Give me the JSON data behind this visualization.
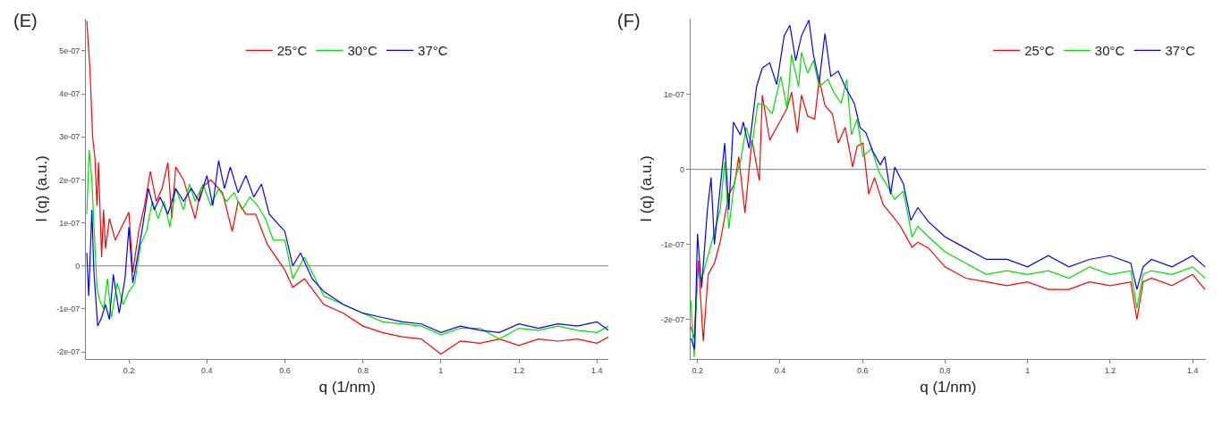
{
  "chart_data": [
    {
      "type": "line",
      "title": "(E)",
      "xlabel": "q (1/nm)",
      "ylabel": "I (q) (a.u.)",
      "xlim": [
        0.09,
        1.43
      ],
      "ylim": [
        -2.17e-07,
        5.75e-07
      ],
      "xticks": [
        0.2,
        0.4,
        0.6,
        0.8,
        1,
        1.2,
        1.4
      ],
      "yticks": [
        {
          "value": -2e-07,
          "label": "-2e-07"
        },
        {
          "value": -1e-07,
          "label": "-1e-07"
        },
        0,
        {
          "value": 1e-07,
          "label": "1e-07"
        },
        {
          "value": 2e-07,
          "label": "2e-07"
        },
        {
          "value": 3e-07,
          "label": "3e-07"
        },
        {
          "value": 4e-07,
          "label": "4e-07"
        },
        {
          "value": 5e-07,
          "label": "5e-07"
        }
      ],
      "grid": false,
      "legend": "top",
      "ref_lines": [
        {
          "axis": "y",
          "value": 0,
          "color": "#808080"
        }
      ],
      "series": [
        {
          "name": "25°C",
          "color": "#ff0000",
          "x": [
            0.092,
            0.1,
            0.107,
            0.113,
            0.118,
            0.122,
            0.13,
            0.135,
            0.14,
            0.15,
            0.165,
            0.2,
            0.21,
            0.225,
            0.24,
            0.255,
            0.27,
            0.285,
            0.3,
            0.31,
            0.32,
            0.34,
            0.37,
            0.385,
            0.41,
            0.44,
            0.465,
            0.48,
            0.5,
            0.525,
            0.555,
            0.585,
            0.6,
            0.62,
            0.65,
            0.7,
            0.75,
            0.8,
            0.85,
            0.9,
            0.95,
            1.0,
            1.05,
            1.1,
            1.15,
            1.2,
            1.25,
            1.3,
            1.35,
            1.4,
            1.43
          ],
          "values": [
            5.7e-07,
            4.6e-07,
            3e-07,
            2.5e-07,
            1.4e-07,
            2.4e-07,
            2e-08,
            1.3e-07,
            4e-08,
            1.1e-07,
            6e-08,
            1.25e-07,
            -1.5e-08,
            8e-08,
            1.4e-07,
            2.2e-07,
            1.5e-07,
            1.8e-07,
            2.4e-07,
            1.1e-07,
            2.3e-07,
            2e-07,
            1.1e-07,
            1.8e-07,
            2e-07,
            1.7e-07,
            8e-08,
            1.5e-07,
            1.2e-07,
            1.2e-07,
            5e-08,
            1e-08,
            -1e-08,
            -5e-08,
            -3e-08,
            -9e-08,
            -1.1e-07,
            -1.4e-07,
            -1.55e-07,
            -1.65e-07,
            -1.7e-07,
            -2.05e-07,
            -1.75e-07,
            -1.8e-07,
            -1.7e-07,
            -1.85e-07,
            -1.7e-07,
            -1.75e-07,
            -1.7e-07,
            -1.8e-07,
            -1.65e-07
          ]
        },
        {
          "name": "30°C",
          "color": "#00e000",
          "x": [
            0.092,
            0.098,
            0.105,
            0.11,
            0.118,
            0.125,
            0.135,
            0.145,
            0.155,
            0.17,
            0.185,
            0.2,
            0.215,
            0.23,
            0.245,
            0.26,
            0.275,
            0.29,
            0.305,
            0.32,
            0.34,
            0.355,
            0.37,
            0.39,
            0.41,
            0.43,
            0.45,
            0.47,
            0.49,
            0.51,
            0.53,
            0.55,
            0.57,
            0.6,
            0.62,
            0.65,
            0.7,
            0.75,
            0.8,
            0.85,
            0.9,
            0.95,
            1.0,
            1.05,
            1.1,
            1.15,
            1.2,
            1.25,
            1.3,
            1.35,
            1.4,
            1.43
          ],
          "values": [
            1.2e-07,
            2.7e-07,
            2e-07,
            1e-07,
            -5e-08,
            -8e-08,
            -1e-07,
            -3e-08,
            -1.2e-07,
            -4e-08,
            -9e-08,
            -6e-08,
            -4e-08,
            5e-08,
            8e-08,
            1.5e-07,
            1.1e-07,
            1.5e-07,
            9e-08,
            1.8e-07,
            1.3e-07,
            1.9e-07,
            1.5e-07,
            1.9e-07,
            1.4e-07,
            1.8e-07,
            1.5e-07,
            1.7e-07,
            1.3e-07,
            1.6e-07,
            1.4e-07,
            1.1e-07,
            6e-08,
            6e-08,
            -3e-08,
            2e-08,
            -7e-08,
            -9e-08,
            -1.1e-07,
            -1.3e-07,
            -1.35e-07,
            -1.4e-07,
            -1.6e-07,
            -1.45e-07,
            -1.45e-07,
            -1.7e-07,
            -1.45e-07,
            -1.5e-07,
            -1.4e-07,
            -1.5e-07,
            -1.55e-07,
            -1.4e-07
          ]
        },
        {
          "name": "37°C",
          "color": "#0000ff",
          "x": [
            0.092,
            0.097,
            0.105,
            0.11,
            0.12,
            0.13,
            0.14,
            0.15,
            0.16,
            0.175,
            0.19,
            0.2,
            0.21,
            0.22,
            0.235,
            0.25,
            0.265,
            0.28,
            0.3,
            0.32,
            0.34,
            0.36,
            0.38,
            0.4,
            0.415,
            0.43,
            0.445,
            0.46,
            0.48,
            0.5,
            0.52,
            0.54,
            0.56,
            0.58,
            0.6,
            0.62,
            0.64,
            0.67,
            0.7,
            0.75,
            0.8,
            0.85,
            0.9,
            0.95,
            1.0,
            1.05,
            1.1,
            1.15,
            1.2,
            1.25,
            1.3,
            1.35,
            1.4,
            1.43
          ],
          "values": [
            3e-08,
            -7e-08,
            1.3e-07,
            -1e-08,
            -1.4e-07,
            -1.2e-07,
            -9e-08,
            -1.25e-07,
            -2e-08,
            -1.1e-07,
            -3e-08,
            9e-08,
            -4e-08,
            1e-08,
            9e-08,
            1.8e-07,
            1.3e-07,
            1.6e-07,
            1.2e-07,
            1.8e-07,
            1.5e-07,
            1.8e-07,
            1.5e-07,
            2.1e-07,
            1.4e-07,
            2.45e-07,
            1.8e-07,
            2.3e-07,
            1.7e-07,
            2.1e-07,
            1.6e-07,
            1.9e-07,
            1.2e-07,
            1e-07,
            8e-08,
            0.0,
            3e-08,
            -3e-08,
            -6e-08,
            -9e-08,
            -1.1e-07,
            -1.2e-07,
            -1.3e-07,
            -1.35e-07,
            -1.55e-07,
            -1.4e-07,
            -1.5e-07,
            -1.55e-07,
            -1.35e-07,
            -1.45e-07,
            -1.35e-07,
            -1.4e-07,
            -1.3e-07,
            -1.5e-07
          ]
        }
      ]
    },
    {
      "type": "line",
      "title": "(F)",
      "xlabel": "q (1/nm)",
      "ylabel": "I (q) (a.u.)",
      "xlim": [
        0.183,
        1.432
      ],
      "ylim": [
        -2.53e-07,
        2.01e-07
      ],
      "xticks": [
        0.2,
        0.4,
        0.6,
        0.8,
        1,
        1.2,
        1.4
      ],
      "yticks": [
        {
          "value": -2e-07,
          "label": "-2e-07"
        },
        {
          "value": -1e-07,
          "label": "-1e-07"
        },
        0,
        {
          "value": 1e-07,
          "label": "1e-07"
        }
      ],
      "grid": false,
      "legend": "top right",
      "ref_lines": [
        {
          "axis": "y",
          "value": 0,
          "color": "#808080"
        }
      ],
      "series": [
        {
          "name": "25°C",
          "color": "#ff0000",
          "x": [
            0.184,
            0.192,
            0.202,
            0.214,
            0.226,
            0.241,
            0.255,
            0.276,
            0.29,
            0.3,
            0.315,
            0.332,
            0.35,
            0.357,
            0.375,
            0.396,
            0.417,
            0.428,
            0.442,
            0.452,
            0.467,
            0.484,
            0.495,
            0.509,
            0.527,
            0.541,
            0.558,
            0.576,
            0.587,
            0.601,
            0.615,
            0.629,
            0.65,
            0.671,
            0.692,
            0.72,
            0.734,
            0.76,
            0.8,
            0.85,
            0.9,
            0.95,
            1.0,
            1.05,
            1.1,
            1.15,
            1.2,
            1.25,
            1.265,
            1.28,
            1.3,
            1.35,
            1.4,
            1.43
          ],
          "values": [
            -2.1e-07,
            -2.25e-07,
            -1.22e-07,
            -2.29e-07,
            -1.4e-07,
            -1.25e-07,
            -9.7e-08,
            -3.3e-08,
            -1.9e-08,
            1.7e-08,
            -5.8e-08,
            3.9e-08,
            -1.5e-08,
            9.9e-08,
            3.9e-08,
            6e-08,
            8.1e-08,
            1.03e-07,
            4.9e-08,
            9.9e-08,
            7.1e-08,
            6.7e-08,
            1.2e-07,
            8.5e-08,
            7.4e-08,
            3.5e-08,
            5.6e-08,
            3e-09,
            3.1e-08,
            3.5e-08,
            -3.3e-08,
            -1.1e-08,
            -4.7e-08,
            -6.1e-08,
            -7.6e-08,
            -1.04e-07,
            -9.7e-08,
            -1.05e-07,
            -1.3e-07,
            -1.45e-07,
            -1.5e-07,
            -1.55e-07,
            -1.5e-07,
            -1.6e-07,
            -1.6e-07,
            -1.5e-07,
            -1.55e-07,
            -1.5e-07,
            -2e-07,
            -1.5e-07,
            -1.45e-07,
            -1.55e-07,
            -1.4e-07,
            -1.6e-07
          ]
        },
        {
          "name": "30°C",
          "color": "#00e000",
          "x": [
            0.184,
            0.192,
            0.2,
            0.21,
            0.224,
            0.238,
            0.255,
            0.266,
            0.276,
            0.29,
            0.304,
            0.318,
            0.332,
            0.346,
            0.364,
            0.381,
            0.402,
            0.417,
            0.428,
            0.445,
            0.452,
            0.467,
            0.481,
            0.495,
            0.516,
            0.53,
            0.548,
            0.562,
            0.573,
            0.587,
            0.601,
            0.622,
            0.64,
            0.657,
            0.678,
            0.699,
            0.72,
            0.734,
            0.76,
            0.8,
            0.85,
            0.9,
            0.95,
            1.0,
            1.05,
            1.1,
            1.15,
            1.2,
            1.25,
            1.265,
            1.28,
            1.3,
            1.35,
            1.4,
            1.43
          ],
          "values": [
            -1.75e-07,
            -2.5e-07,
            -1.4e-07,
            -1.47e-07,
            -1.18e-07,
            -9e-08,
            -5.4e-08,
            1e-08,
            -7.9e-08,
            -1.5e-08,
            1e-08,
            5.6e-08,
            3.1e-08,
            8.8e-08,
            8.5e-08,
            7.4e-08,
            1.24e-07,
            8.1e-08,
            1.53e-07,
            1.1e-07,
            1.56e-07,
            1.28e-07,
            1.45e-07,
            1.1e-07,
            1.2e-07,
            1.03e-07,
            8.8e-08,
            1.2e-07,
            4.6e-08,
            6.7e-08,
            1.7e-08,
            2.8e-08,
            -4e-09,
            -1.9e-08,
            -4e-08,
            -2.9e-08,
            -9e-08,
            -7.6e-08,
            -9e-08,
            -1.1e-07,
            -1.25e-07,
            -1.4e-07,
            -1.35e-07,
            -1.4e-07,
            -1.35e-07,
            -1.45e-07,
            -1.3e-07,
            -1.4e-07,
            -1.35e-07,
            -1.85e-07,
            -1.4e-07,
            -1.35e-07,
            -1.4e-07,
            -1.3e-07,
            -1.45e-07
          ]
        },
        {
          "name": "37°C",
          "color": "#0000ff",
          "x": [
            0.184,
            0.193,
            0.2,
            0.21,
            0.224,
            0.233,
            0.241,
            0.266,
            0.276,
            0.287,
            0.304,
            0.311,
            0.325,
            0.343,
            0.357,
            0.375,
            0.392,
            0.41,
            0.424,
            0.438,
            0.452,
            0.47,
            0.481,
            0.495,
            0.509,
            0.523,
            0.541,
            0.558,
            0.58,
            0.594,
            0.608,
            0.625,
            0.643,
            0.654,
            0.668,
            0.678,
            0.699,
            0.717,
            0.734,
            0.76,
            0.8,
            0.85,
            0.9,
            0.95,
            1.0,
            1.05,
            1.1,
            1.15,
            1.2,
            1.25,
            1.265,
            1.28,
            1.3,
            1.35,
            1.4,
            1.43
          ],
          "values": [
            -2.25e-07,
            -2.4e-07,
            -8.6e-08,
            -1.58e-07,
            -5.4e-08,
            -1.1e-08,
            -1e-07,
            3.5e-08,
            -5.4e-08,
            6.3e-08,
            4.6e-08,
            6.3e-08,
            2.8e-08,
            1.1e-07,
            1.35e-07,
            1.42e-07,
            1.13e-07,
            1.78e-07,
            1.92e-07,
            1.45e-07,
            1.78e-07,
            1.99e-07,
            1.53e-07,
            1.17e-07,
            1.81e-07,
            1.24e-07,
            1.31e-07,
            1.1e-07,
            8.8e-08,
            5.6e-08,
            4.9e-08,
            2.4e-08,
            6e-09,
            1.7e-08,
            -3.3e-08,
            3e-09,
            -1.9e-08,
            -6.8e-08,
            -5.1e-08,
            -7e-08,
            -9e-08,
            -1.05e-07,
            -1.2e-07,
            -1.2e-07,
            -1.3e-07,
            -1.15e-07,
            -1.3e-07,
            -1.2e-07,
            -1.15e-07,
            -1.25e-07,
            -1.6e-07,
            -1.3e-07,
            -1.2e-07,
            -1.3e-07,
            -1.15e-07,
            -1.3e-07
          ]
        }
      ]
    }
  ]
}
